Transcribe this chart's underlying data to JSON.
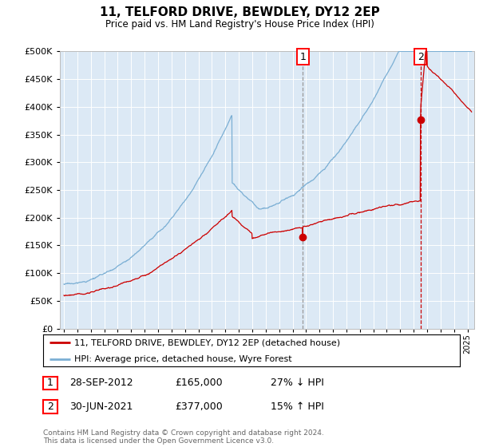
{
  "title": "11, TELFORD DRIVE, BEWDLEY, DY12 2EP",
  "subtitle": "Price paid vs. HM Land Registry's House Price Index (HPI)",
  "ylim": [
    0,
    500000
  ],
  "xlim_start": 1994.7,
  "xlim_end": 2025.5,
  "bg_color": "#dce9f5",
  "line1_color": "#cc0000",
  "line2_color": "#7bafd4",
  "sale1_x": 2012.75,
  "sale1_y": 165000,
  "sale2_x": 2021.5,
  "sale2_y": 377000,
  "vline1_color": "#999999",
  "vline2_color": "#cc0000",
  "legend1": "11, TELFORD DRIVE, BEWDLEY, DY12 2EP (detached house)",
  "legend2": "HPI: Average price, detached house, Wyre Forest",
  "ann1_date": "28-SEP-2012",
  "ann1_price": "£165,000",
  "ann1_hpi": "27% ↓ HPI",
  "ann2_date": "30-JUN-2021",
  "ann2_price": "£377,000",
  "ann2_hpi": "15% ↑ HPI",
  "footer": "Contains HM Land Registry data © Crown copyright and database right 2024.\nThis data is licensed under the Open Government Licence v3.0."
}
